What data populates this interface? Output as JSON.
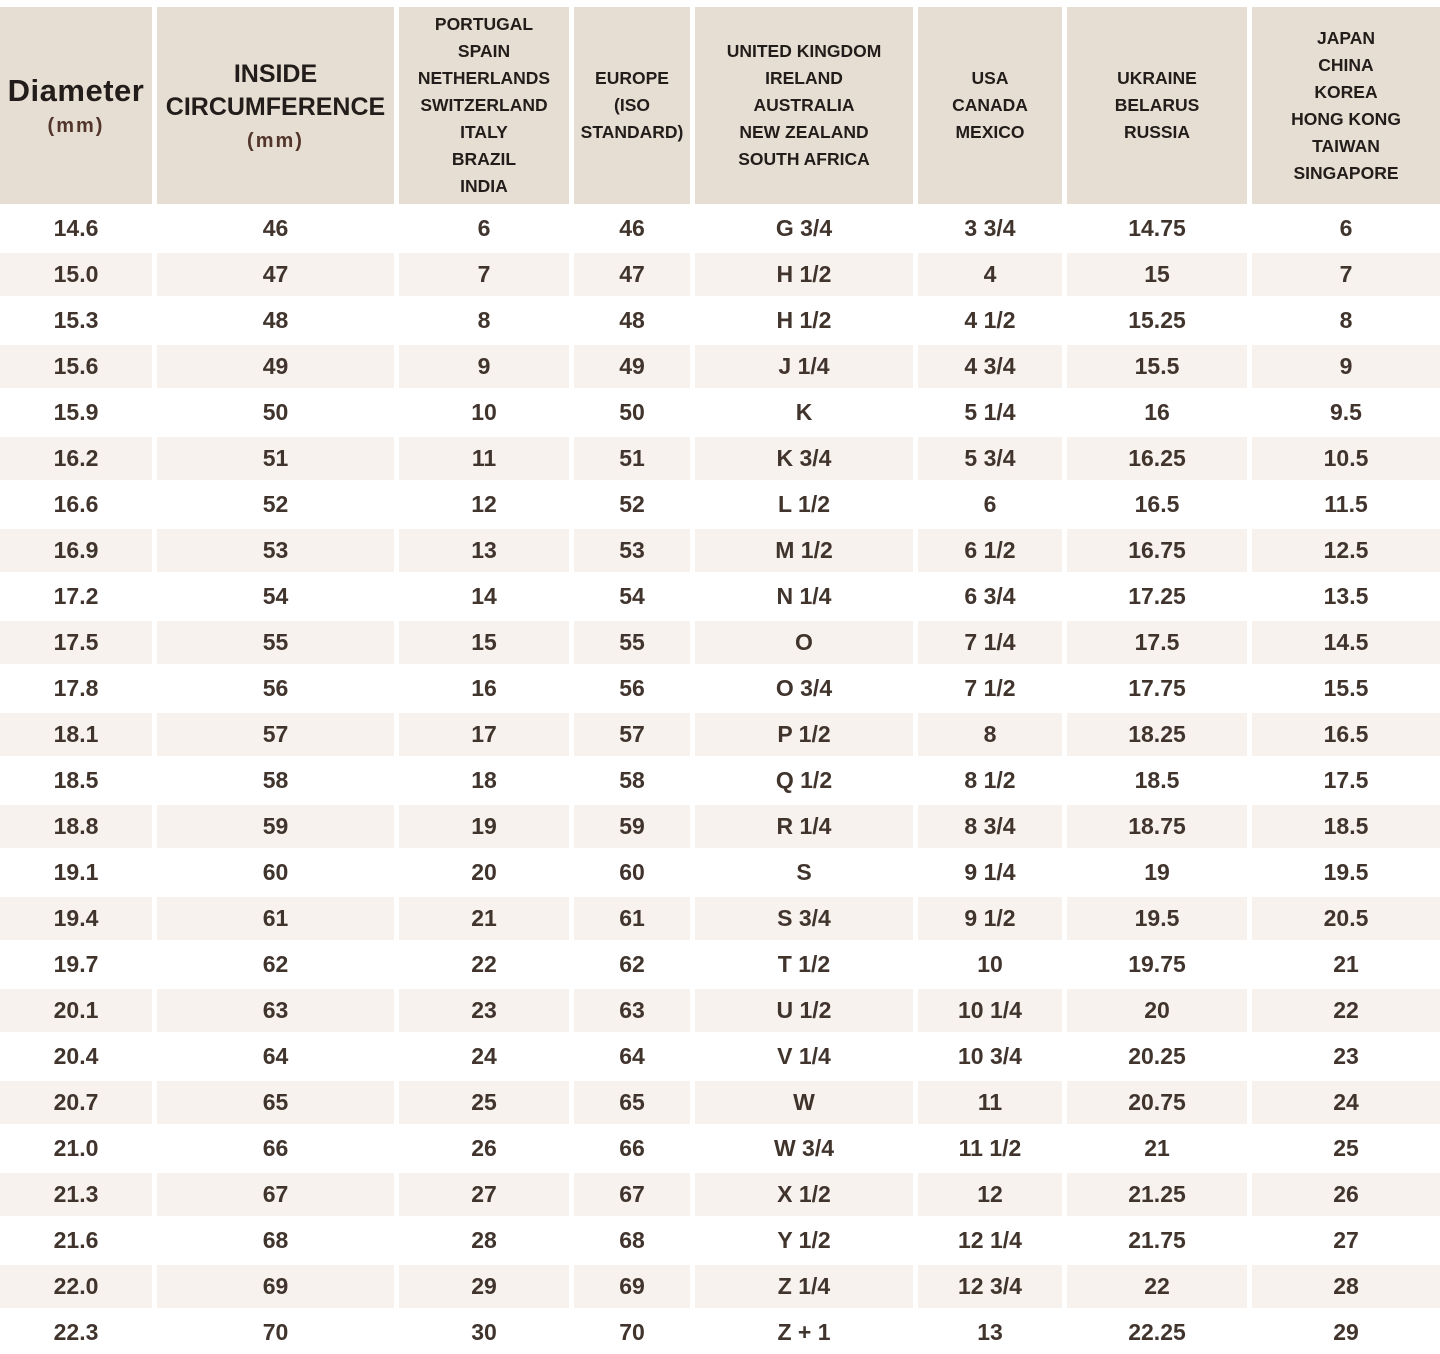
{
  "colors": {
    "header_background": "#e7ded3",
    "stripe_background": "#f7f2ee",
    "row_background": "#ffffff",
    "header_text": "#221d1a",
    "unit_text": "#51352b",
    "data_text": "#40342d"
  },
  "table": {
    "columns": [
      {
        "id": "diameter",
        "header_lines": [
          "Diameter"
        ],
        "unit": "(mm)"
      },
      {
        "id": "inside-circumference",
        "header_lines": [
          "INSIDE",
          "CIRCUMFERENCE"
        ],
        "unit": "(mm)"
      },
      {
        "id": "portugal-group",
        "header_lines": [
          "PORTUGAL",
          "SPAIN",
          "NETHERLANDS",
          "SWITZERLAND",
          "ITALY",
          "BRAZIL",
          "INDIA"
        ],
        "unit": ""
      },
      {
        "id": "europe-iso",
        "header_lines": [
          "EUROPE",
          "(ISO",
          "STANDARD)"
        ],
        "unit": ""
      },
      {
        "id": "uk-group",
        "header_lines": [
          "UNITED KINGDOM",
          "IRELAND",
          "AUSTRALIA",
          "NEW ZEALAND",
          "SOUTH AFRICA"
        ],
        "unit": ""
      },
      {
        "id": "usa-group",
        "header_lines": [
          "USA",
          "CANADA",
          "MEXICO"
        ],
        "unit": ""
      },
      {
        "id": "ukraine-group",
        "header_lines": [
          "UKRAINE",
          "BELARUS",
          "RUSSIA"
        ],
        "unit": ""
      },
      {
        "id": "japan-group",
        "header_lines": [
          "JAPAN",
          "CHINA",
          "KOREA",
          "HONG KONG",
          "TAIWAN",
          "SINGAPORE"
        ],
        "unit": ""
      }
    ],
    "rows": [
      [
        "14.6",
        "46",
        "6",
        "46",
        "G 3/4",
        "3 3/4",
        "14.75",
        "6"
      ],
      [
        "15.0",
        "47",
        "7",
        "47",
        "H 1/2",
        "4",
        "15",
        "7"
      ],
      [
        "15.3",
        "48",
        "8",
        "48",
        "H 1/2",
        "4 1/2",
        "15.25",
        "8"
      ],
      [
        "15.6",
        "49",
        "9",
        "49",
        "J 1/4",
        "4 3/4",
        "15.5",
        "9"
      ],
      [
        "15.9",
        "50",
        "10",
        "50",
        "K",
        "5 1/4",
        "16",
        "9.5"
      ],
      [
        "16.2",
        "51",
        "11",
        "51",
        "K 3/4",
        "5 3/4",
        "16.25",
        "10.5"
      ],
      [
        "16.6",
        "52",
        "12",
        "52",
        "L 1/2",
        "6",
        "16.5",
        "11.5"
      ],
      [
        "16.9",
        "53",
        "13",
        "53",
        "M 1/2",
        "6 1/2",
        "16.75",
        "12.5"
      ],
      [
        "17.2",
        "54",
        "14",
        "54",
        "N 1/4",
        "6 3/4",
        "17.25",
        "13.5"
      ],
      [
        "17.5",
        "55",
        "15",
        "55",
        "O",
        "7 1/4",
        "17.5",
        "14.5"
      ],
      [
        "17.8",
        "56",
        "16",
        "56",
        "O 3/4",
        "7 1/2",
        "17.75",
        "15.5"
      ],
      [
        "18.1",
        "57",
        "17",
        "57",
        "P 1/2",
        "8",
        "18.25",
        "16.5"
      ],
      [
        "18.5",
        "58",
        "18",
        "58",
        "Q 1/2",
        "8 1/2",
        "18.5",
        "17.5"
      ],
      [
        "18.8",
        "59",
        "19",
        "59",
        "R 1/4",
        "8 3/4",
        "18.75",
        "18.5"
      ],
      [
        "19.1",
        "60",
        "20",
        "60",
        "S",
        "9 1/4",
        "19",
        "19.5"
      ],
      [
        "19.4",
        "61",
        "21",
        "61",
        "S 3/4",
        "9 1/2",
        "19.5",
        "20.5"
      ],
      [
        "19.7",
        "62",
        "22",
        "62",
        "T 1/2",
        "10",
        "19.75",
        "21"
      ],
      [
        "20.1",
        "63",
        "23",
        "63",
        "U 1/2",
        "10 1/4",
        "20",
        "22"
      ],
      [
        "20.4",
        "64",
        "24",
        "64",
        "V 1/4",
        "10 3/4",
        "20.25",
        "23"
      ],
      [
        "20.7",
        "65",
        "25",
        "65",
        "W",
        "11",
        "20.75",
        "24"
      ],
      [
        "21.0",
        "66",
        "26",
        "66",
        "W 3/4",
        "11 1/2",
        "21",
        "25"
      ],
      [
        "21.3",
        "67",
        "27",
        "67",
        "X 1/2",
        "12",
        "21.25",
        "26"
      ],
      [
        "21.6",
        "68",
        "28",
        "68",
        "Y 1/2",
        "12 1/4",
        "21.75",
        "27"
      ],
      [
        "22.0",
        "69",
        "29",
        "69",
        "Z 1/4",
        "12 3/4",
        "22",
        "28"
      ],
      [
        "22.3",
        "70",
        "30",
        "70",
        "Z + 1",
        "13",
        "22.25",
        "29"
      ]
    ]
  }
}
